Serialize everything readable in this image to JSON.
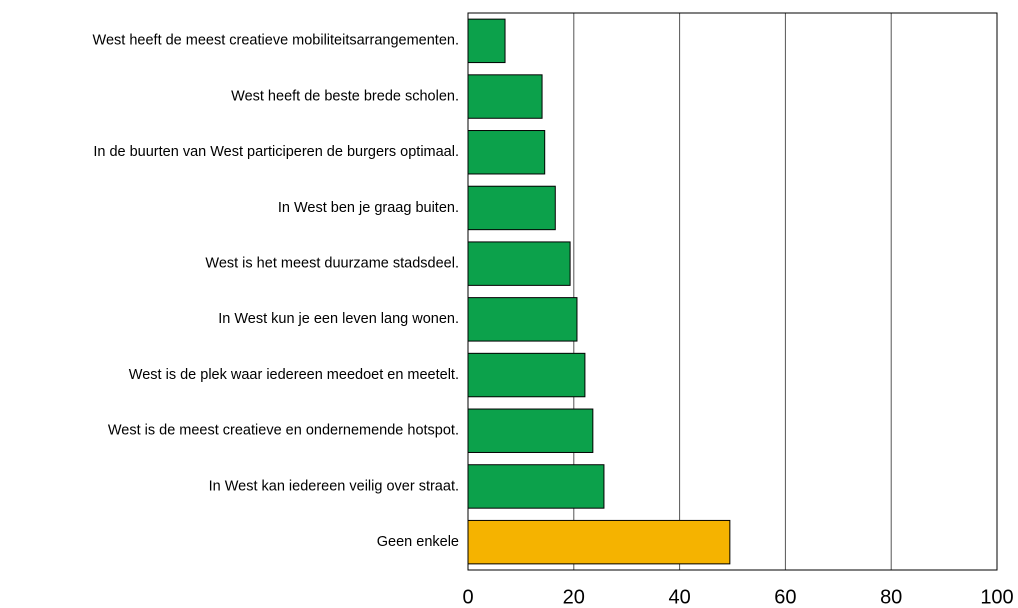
{
  "chart_data": {
    "type": "hbar",
    "categories": [
      "West heeft de meest creatieve mobiliteitsarrangementen.",
      "West heeft de beste brede scholen.",
      "In de buurten van West participeren de burgers optimaal.",
      "In West ben je graag buiten.",
      "West is het meest duurzame stadsdeel.",
      "In West kun je een leven lang wonen.",
      "West is de plek waar iedereen meedoet en meetelt.",
      "West is de meest creatieve en ondernemende hotspot.",
      "In West kan iedereen veilig over straat.",
      "Geen enkele"
    ],
    "values": [
      7,
      14,
      14.5,
      16.5,
      19.3,
      20.6,
      22.1,
      23.6,
      25.7,
      49.5
    ],
    "colors": [
      "#0ca14b",
      "#0ca14b",
      "#0ca14b",
      "#0ca14b",
      "#0ca14b",
      "#0ca14b",
      "#0ca14b",
      "#0ca14b",
      "#0ca14b",
      "#f5b300"
    ],
    "xlim": [
      0,
      100
    ],
    "xticks": [
      0,
      20,
      40,
      60,
      80,
      100
    ],
    "grid": true
  }
}
